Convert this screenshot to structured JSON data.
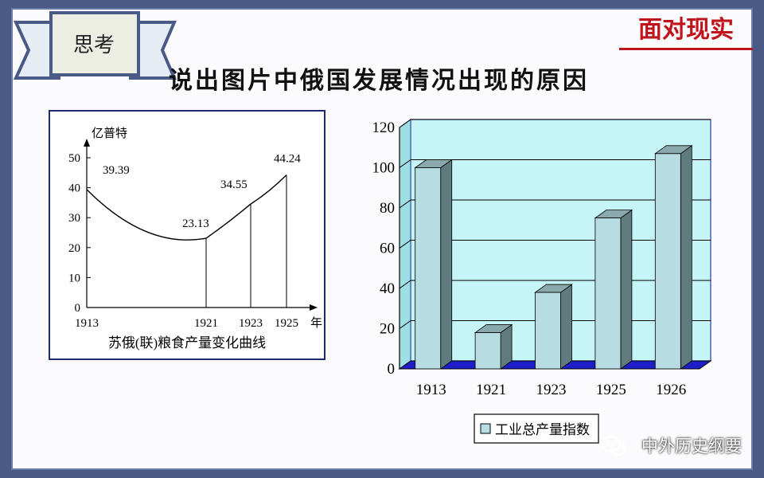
{
  "slide": {
    "badge_label": "思考",
    "corner_title": "面对现实",
    "question": "说出图片中俄国发展情况出现的原因",
    "watermark": "中外历史纲要"
  },
  "colors": {
    "background": "#4a5a86",
    "accent_red": "#c0141c",
    "bar_fill": "#b7dde3",
    "plot_bg": "#c6f5f7"
  },
  "icons": [
    "wechat-icon"
  ],
  "chart_data": [
    {
      "type": "line",
      "title": "苏俄(联)粮食产量变化曲线",
      "ylabel": "亿普特",
      "xlabel": "年",
      "x": [
        1913,
        1921,
        1923,
        1925
      ],
      "values": [
        39.39,
        23.13,
        34.55,
        44.24
      ],
      "data_labels": [
        "39.39",
        "23.13",
        "34.55",
        "44.24"
      ],
      "ylim": [
        0,
        50
      ],
      "yticks": [
        "0",
        "10",
        "20",
        "30",
        "40",
        "50"
      ],
      "xticks": [
        "1913",
        "1921",
        "1923",
        "1925"
      ],
      "grid": false
    },
    {
      "type": "bar",
      "categories": [
        "1913",
        "1921",
        "1923",
        "1925",
        "1926"
      ],
      "series": [
        {
          "name": "工业总产量指数",
          "values": [
            100,
            18,
            38,
            75,
            107
          ]
        }
      ],
      "ylim": [
        0,
        120
      ],
      "yticks": [
        "0",
        "20",
        "40",
        "60",
        "80",
        "100",
        "120"
      ],
      "grid": true,
      "legend": "bottom"
    }
  ]
}
